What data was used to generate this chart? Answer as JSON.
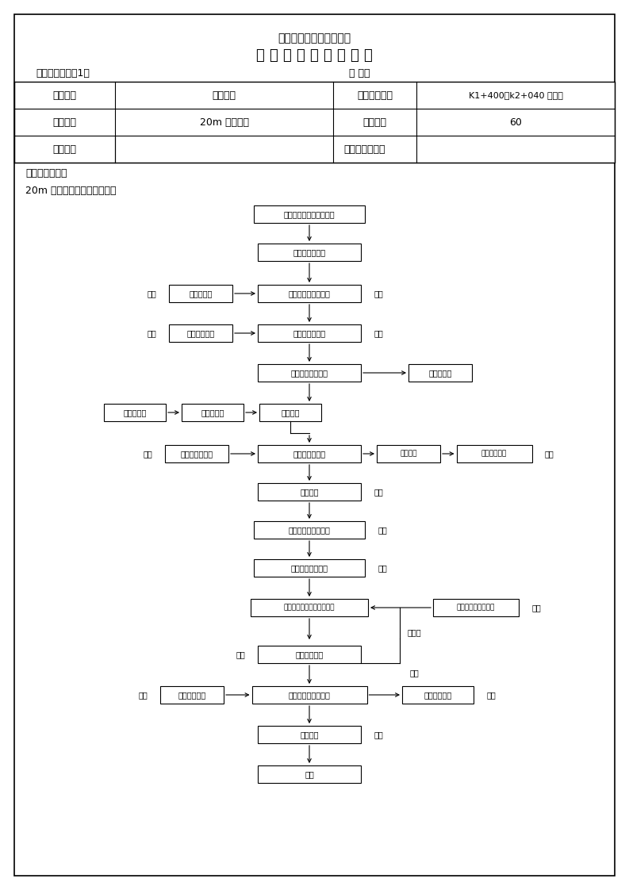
{
  "company": "广西公路桥梁工程总公司",
  "doc_title": "施 工 技 术 交 底 记 录 表",
  "proj_label": "项目名称：靖那1标",
  "code_label": "编 号：",
  "row1": [
    "工程名称",
    "桥梁工程",
    "桩号（地点）",
    "K1+400～k2+040 预制场"
  ],
  "row2": [
    "分项工程",
    "20m 箱梁预制",
    "施工人数",
    "60"
  ],
  "row3": [
    "交底对象",
    "现场施工技术员"
  ],
  "intro1": "技术交底内容：",
  "intro2": "20m 箱梁预制的流程图如下：",
  "n1": "预制梁标准化设计及准备",
  "n2": "箱梁台座的处理",
  "n3l": "钢筋的验验",
  "n3": "底板底板钢筋的绑扎",
  "n4l": "波纹管的验验",
  "n4": "波纹管道的布置",
  "n5": "封端板及锚具施工",
  "n5r": "锚具的检验",
  "n6a": "模板的加工",
  "n6b": "模板的预拼",
  "n6c": "支立外模",
  "n7l": "砂石材料的验验",
  "n7": "浇筑底板混凝土",
  "n7r1": "砼的排合",
  "n7r2": "砼配合比批复",
  "n8": "支立内模",
  "n9": "顶板底板钢筋的绑扎",
  "n10": "翼板顶板砼的浇筑",
  "n11": "振捣振实、砼的标准化养护",
  "n11r": "梁体压样式回弹处理",
  "n12": "七天后压试件",
  "n13l": "钢绞线的验验",
  "n13": "穿管及钢绞线及张拉",
  "n13r": "千斤顶的标定",
  "n14": "管道压浆",
  "n15": "移梁",
  "jianjian": "验检",
  "bugehe": "不合格",
  "hege": "合格"
}
